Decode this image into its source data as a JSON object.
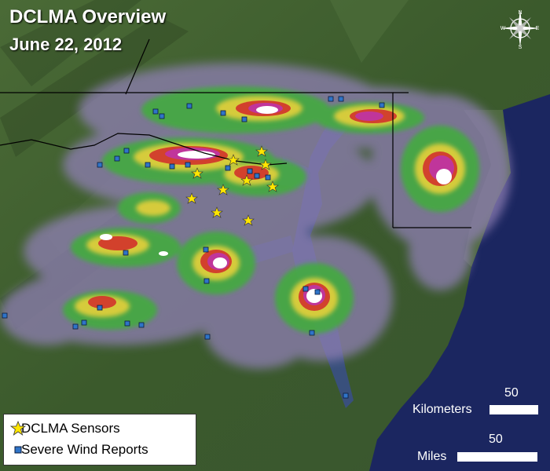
{
  "title": "DCLMA Overview",
  "date": "June 22, 2012",
  "legend": {
    "sensors_label": "DCLMA Sensors",
    "reports_label": "Severe Wind Reports"
  },
  "scale": {
    "km_label": "Kilometers",
    "km_value": "50",
    "mi_label": "Miles",
    "mi_value": "50"
  },
  "compass_letters": [
    "N",
    "E",
    "S",
    "W"
  ],
  "colors": {
    "land": "#3f5a2e",
    "ocean": "#1b2660",
    "sensor_star": "#ffe600",
    "report_square": "#2f74c8",
    "radar_low": "#8f7fb4",
    "radar_mid_green": "#3fae3a",
    "radar_yellow": "#e6d03a",
    "radar_red": "#d23a2c",
    "radar_magenta": "#c0359b",
    "radar_white": "#ffffff"
  },
  "icons": [
    "star-icon",
    "square-icon",
    "compass-icon"
  ]
}
